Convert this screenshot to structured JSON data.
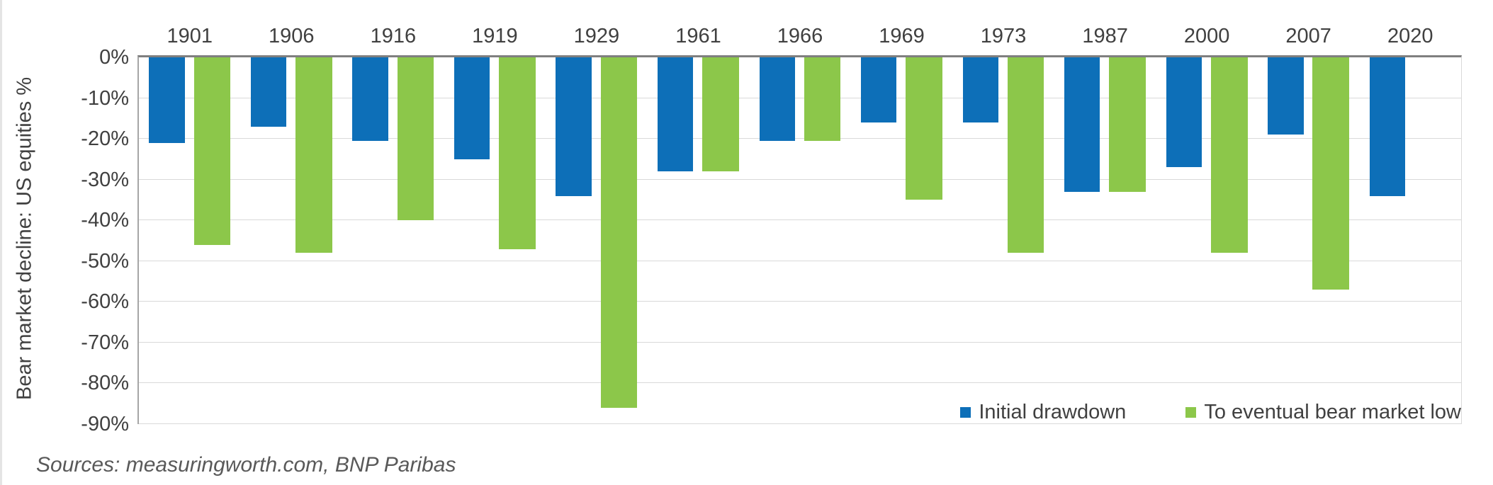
{
  "page": {
    "source_note": "Sources: measuringworth.com, BNP Paribas"
  },
  "chart_data": {
    "type": "bar",
    "orientation": "vertical",
    "title": "",
    "ylabel": "Bear market decline: US equities %",
    "xlabel": "",
    "x_labels_position": "top",
    "ylim": [
      -90,
      0
    ],
    "y_ticks": [
      "0%",
      "-10%",
      "-20%",
      "-30%",
      "-40%",
      "-50%",
      "-60%",
      "-70%",
      "-80%",
      "-90%"
    ],
    "grid": "horizontal",
    "legend_position": "inside-bottom-right",
    "categories": [
      "1901",
      "1906",
      "1916",
      "1919",
      "1929",
      "1961",
      "1966",
      "1969",
      "1973",
      "1987",
      "2000",
      "2007",
      "2020"
    ],
    "series": [
      {
        "name": "Initial drawdown",
        "color": "#0d6fb8",
        "values": [
          -21,
          -17,
          -20.5,
          -25,
          -34,
          -28,
          -20.5,
          -16,
          -16,
          -33,
          -27,
          -19,
          -34
        ]
      },
      {
        "name": "To eventual bear market low",
        "color": "#8cc74a",
        "values": [
          -46,
          -48,
          -40,
          -47,
          -86,
          -28,
          -20.5,
          -35,
          -48,
          -33,
          -48,
          -57,
          null
        ]
      }
    ]
  }
}
